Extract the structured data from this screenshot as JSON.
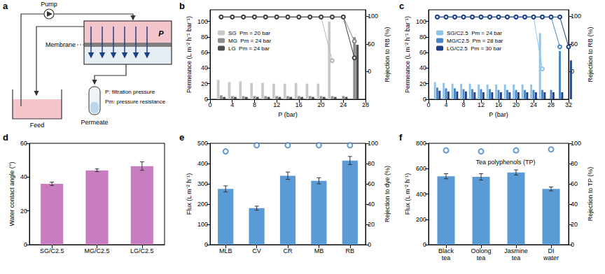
{
  "diagram": {
    "label": "a",
    "pump": "Pump",
    "membrane": "Membrane",
    "pressure": "P",
    "feed": "Feed",
    "permeate": "Permeate",
    "notes": [
      "P: filtration pressure",
      "Pm: pressure resistance"
    ]
  },
  "chart_data": [
    {
      "label": "b",
      "type": "bar",
      "x_label": "P (bar)",
      "y_label": "Permeance (L m⁻² h⁻¹ bar⁻¹)",
      "y2_label": "Rejection to RB (%)",
      "x": [
        2,
        4,
        6,
        8,
        10,
        12,
        14,
        16,
        18,
        20,
        22,
        24,
        26
      ],
      "xlim": [
        0,
        28
      ],
      "xticks": [
        0,
        4,
        8,
        12,
        16,
        20,
        24,
        28
      ],
      "ylim": [
        0,
        115
      ],
      "yticks": [
        0,
        20,
        40,
        60,
        80,
        100
      ],
      "y2lim": [
        -50,
        112
      ],
      "y2ticks": [
        0,
        50,
        100
      ],
      "grid": false,
      "legend": "upper left",
      "series": [
        {
          "name": "SG",
          "note": "Pm = 20 bar",
          "type": "bar",
          "color": "#c8c8c8",
          "values": [
            25,
            22,
            23,
            21,
            21,
            20,
            20,
            21,
            20,
            20,
            100,
            null,
            null
          ]
        },
        {
          "name": "MG",
          "note": "Pm = 24 bar",
          "type": "bar",
          "color": "#8f8f8f",
          "values": [
            5,
            4,
            4,
            4,
            4,
            4,
            4,
            4,
            4,
            4,
            4,
            4,
            80
          ]
        },
        {
          "name": "LG",
          "note": "Pm = 24 bar",
          "type": "bar",
          "color": "#505050",
          "values": [
            3,
            3,
            3,
            3,
            3,
            3,
            3,
            3,
            3,
            3,
            3,
            3,
            70
          ]
        },
        {
          "type": "line",
          "axis": "y2",
          "marker": "open_circle",
          "line_style": "solid",
          "color": "#b8b8b8",
          "values": [
            99,
            99,
            99,
            99,
            99,
            99,
            99,
            99,
            99,
            99,
            20,
            null,
            null
          ]
        },
        {
          "type": "line",
          "axis": "y2",
          "marker": "open_circle",
          "line_style": "solid",
          "color": "#8a8a8a",
          "values": [
            99,
            99,
            99,
            99,
            99,
            99,
            99,
            99,
            99,
            99,
            99,
            99,
            55
          ]
        },
        {
          "type": "line",
          "axis": "y2",
          "marker": "open_circle",
          "line_style": "solid",
          "color": "#404040",
          "values": [
            99,
            99,
            99,
            99,
            99,
            99,
            99,
            99,
            99,
            99,
            99,
            99,
            25
          ]
        }
      ]
    },
    {
      "label": "c",
      "type": "bar",
      "x_label": "P (bar)",
      "y_label": "Permeance (L m⁻² h⁻¹ bar⁻¹)",
      "y2_label": "Rejection to RB (%)",
      "x": [
        2,
        4,
        6,
        8,
        10,
        12,
        14,
        16,
        18,
        20,
        22,
        24,
        26,
        28,
        30,
        32
      ],
      "xlim": [
        0,
        32
      ],
      "xticks": [
        0,
        4,
        8,
        12,
        16,
        20,
        24,
        28,
        32
      ],
      "ylim": [
        0,
        115
      ],
      "yticks": [
        0,
        20,
        40,
        60,
        80,
        100
      ],
      "y2lim": [
        -50,
        112
      ],
      "y2ticks": [
        0,
        50,
        100
      ],
      "grid": false,
      "legend": "upper left",
      "series": [
        {
          "name": "SG/C2.5",
          "note": "Pm = 24 bar",
          "type": "bar",
          "color": "#8fc3ea",
          "values": [
            22,
            21,
            20,
            20,
            20,
            19,
            19,
            19,
            19,
            19,
            19,
            19,
            85,
            null,
            null,
            null
          ]
        },
        {
          "name": "MG/C2.5",
          "note": "Pm = 28 bar",
          "type": "bar",
          "color": "#4a86c5",
          "values": [
            15,
            14,
            14,
            13,
            13,
            13,
            13,
            12,
            12,
            12,
            12,
            12,
            12,
            12,
            62,
            null
          ]
        },
        {
          "name": "LG/C2.5",
          "note": "Pm = 30 bar",
          "type": "bar",
          "color": "#1f3f86",
          "values": [
            11,
            10,
            10,
            10,
            9,
            9,
            9,
            9,
            9,
            9,
            9,
            9,
            9,
            9,
            9,
            50
          ]
        },
        {
          "type": "line",
          "axis": "y2",
          "marker": "open_circle",
          "line_style": "solid",
          "color": "#8fc3ea",
          "values": [
            99,
            99,
            99,
            99,
            99,
            99,
            99,
            99,
            99,
            99,
            99,
            99,
            5,
            null,
            null,
            null
          ]
        },
        {
          "type": "line",
          "axis": "y2",
          "marker": "open_circle",
          "line_style": "solid",
          "color": "#4a86c5",
          "values": [
            99,
            99,
            99,
            99,
            99,
            99,
            99,
            99,
            99,
            99,
            99,
            99,
            99,
            99,
            45,
            null
          ]
        },
        {
          "type": "line",
          "axis": "y2",
          "marker": "open_circle",
          "line_style": "solid",
          "color": "#1f3f86",
          "values": [
            99,
            99,
            99,
            99,
            99,
            99,
            99,
            99,
            99,
            99,
            99,
            99,
            99,
            99,
            99,
            45
          ]
        }
      ]
    },
    {
      "label": "d",
      "type": "bar",
      "y_label": "Water contact angle (°)",
      "categories": [
        "SG/C2.5",
        "MG/C2.5",
        "LG/C2.5"
      ],
      "ylim": [
        0,
        60
      ],
      "yticks": [
        0,
        20,
        40,
        60
      ],
      "grid": false,
      "series": [
        {
          "type": "bar",
          "color": "#c77dc0",
          "values": [
            36,
            44,
            46.5
          ],
          "errors": [
            1.0,
            0.8,
            2.5
          ]
        }
      ]
    },
    {
      "label": "e",
      "type": "bar",
      "y_label": "Flux (L m⁻² h⁻¹)",
      "y2_label": "Rejection to dye (%)",
      "categories": [
        "MLB",
        "CV",
        "CR",
        "MB",
        "RB"
      ],
      "ylim": [
        0,
        500
      ],
      "yticks": [
        0,
        100,
        200,
        300,
        400,
        500
      ],
      "y2lim": [
        0,
        100
      ],
      "y2ticks": [
        0,
        20,
        40,
        60,
        80,
        100
      ],
      "grid": false,
      "series": [
        {
          "type": "bar",
          "color": "#5b9bd5",
          "values": [
            275,
            180,
            340,
            315,
            415
          ],
          "errors": [
            15,
            10,
            18,
            15,
            20
          ]
        },
        {
          "type": "scatter",
          "axis": "y2",
          "marker": "open_circle",
          "color": "#3f80c4",
          "values": [
            92,
            98,
            98,
            98,
            98
          ]
        }
      ]
    },
    {
      "label": "f",
      "type": "bar",
      "y_label": "Flux (L m⁻² h⁻¹)",
      "y2_label": "Rejection to TP (%)",
      "annotation": "Tea polyphenols (TP)",
      "categories": [
        "Black tea",
        "Oolong tea",
        "Jasmine tea",
        "DI water"
      ],
      "ylim": [
        0,
        800
      ],
      "yticks": [
        0,
        200,
        400,
        600,
        800
      ],
      "y2lim": [
        0,
        100
      ],
      "y2ticks": [
        0,
        20,
        40,
        60,
        80,
        100
      ],
      "grid": false,
      "series": [
        {
          "type": "bar",
          "color": "#5b9bd5",
          "values": [
            540,
            535,
            570,
            440
          ],
          "errors": [
            20,
            25,
            20,
            15
          ]
        },
        {
          "type": "scatter",
          "axis": "y2",
          "marker": "open_circle",
          "color": "#3f80c4",
          "values": [
            93,
            92,
            93,
            94
          ]
        }
      ]
    }
  ]
}
